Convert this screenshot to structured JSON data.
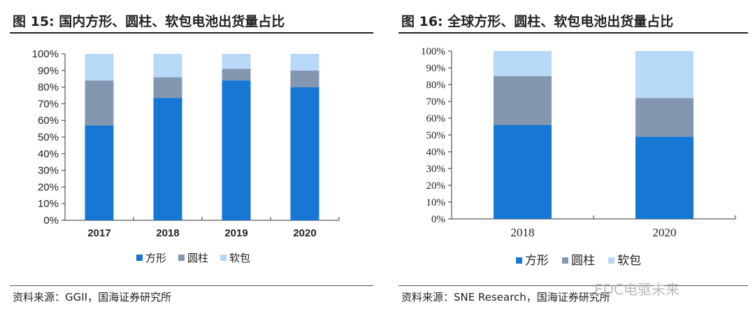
{
  "colors": {
    "prismatic": "#1677d4",
    "cylindrical": "#8497b0",
    "pouch": "#b8d8f8"
  },
  "chart_data": [
    {
      "type": "bar",
      "stacked": true,
      "title": "图 15:  国内方形、圆柱、软包电池出货量占比",
      "categories": [
        "2017",
        "2018",
        "2019",
        "2020"
      ],
      "series": [
        {
          "name": "方形",
          "values": [
            57,
            73.5,
            84,
            80
          ]
        },
        {
          "name": "圆柱",
          "values": [
            27,
            12.5,
            7,
            10
          ]
        },
        {
          "name": "软包",
          "values": [
            16,
            14,
            9,
            10
          ]
        }
      ],
      "yticks": [
        "0%",
        "10%",
        "20%",
        "30%",
        "40%",
        "50%",
        "60%",
        "70%",
        "80%",
        "90%",
        "100%"
      ],
      "ylim": [
        0,
        100
      ],
      "legend": "bottom",
      "source": "资料来源：GGII，国海证券研究所"
    },
    {
      "type": "bar",
      "stacked": true,
      "title": "图 16:  全球方形、圆柱、软包电池出货量占比",
      "categories": [
        "2018",
        "2020"
      ],
      "series": [
        {
          "name": "方形",
          "values": [
            56,
            49
          ]
        },
        {
          "name": "圆柱",
          "values": [
            29,
            23
          ]
        },
        {
          "name": "软包",
          "values": [
            15,
            28
          ]
        }
      ],
      "yticks": [
        "0%",
        "10%",
        "20%",
        "30%",
        "40%",
        "50%",
        "60%",
        "70%",
        "80%",
        "90%",
        "100%"
      ],
      "ylim": [
        0,
        100
      ],
      "legend": "bottom",
      "source": "资料来源：SNE Research，国海证券研究所"
    }
  ],
  "watermark": "EDC电驱未来"
}
